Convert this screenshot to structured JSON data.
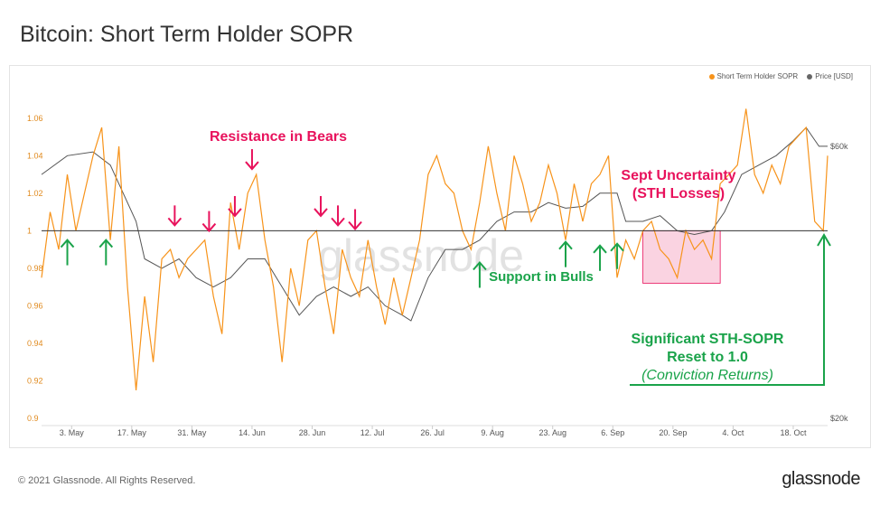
{
  "title": "Bitcoin: Short Term Holder SOPR",
  "footer": "© 2021 Glassnode. All Rights Reserved.",
  "logo": "glassnode",
  "watermark": "glassnode",
  "legend": [
    {
      "label": "Short Term Holder SOPR",
      "color": "#f7931a"
    },
    {
      "label": "Price [USD]",
      "color": "#666666"
    }
  ],
  "colors": {
    "sopr": "#f7931a",
    "price": "#555555",
    "resistance": "#e8125c",
    "support": "#1aa34a",
    "box": "#f7b6cd"
  },
  "chart_data": {
    "type": "line",
    "title": "Bitcoin: Short Term Holder SOPR",
    "x_ticks": [
      "3. May",
      "17. May",
      "31. May",
      "14. Jun",
      "28. Jun",
      "12. Jul",
      "26. Jul",
      "9. Aug",
      "23. Aug",
      "6. Sep",
      "20. Sep",
      "4. Oct",
      "18. Oct"
    ],
    "x_range": [
      "2021-04-26",
      "2021-10-26"
    ],
    "y_left_ticks": [
      "1.06",
      "1.04",
      "1.02",
      "1",
      "0.98",
      "0.96",
      "0.94",
      "0.92",
      "0.9"
    ],
    "y_left_range": [
      0.9,
      1.07
    ],
    "y_right_ticks": [
      "$60k",
      "$20k"
    ],
    "reference_line": 1,
    "series": [
      {
        "name": "Short Term Holder SOPR",
        "axis": "left",
        "points": [
          [
            "2021-04-26",
            0.975
          ],
          [
            "2021-04-28",
            1.01
          ],
          [
            "2021-04-30",
            0.99
          ],
          [
            "2021-05-02",
            1.03
          ],
          [
            "2021-05-04",
            1.0
          ],
          [
            "2021-05-06",
            1.02
          ],
          [
            "2021-05-08",
            1.04
          ],
          [
            "2021-05-10",
            1.055
          ],
          [
            "2021-05-12",
            0.995
          ],
          [
            "2021-05-14",
            1.045
          ],
          [
            "2021-05-16",
            0.97
          ],
          [
            "2021-05-18",
            0.915
          ],
          [
            "2021-05-20",
            0.965
          ],
          [
            "2021-05-22",
            0.93
          ],
          [
            "2021-05-24",
            0.985
          ],
          [
            "2021-05-26",
            0.99
          ],
          [
            "2021-05-28",
            0.975
          ],
          [
            "2021-05-30",
            0.985
          ],
          [
            "2021-06-01",
            0.99
          ],
          [
            "2021-06-03",
            0.995
          ],
          [
            "2021-06-05",
            0.965
          ],
          [
            "2021-06-07",
            0.945
          ],
          [
            "2021-06-09",
            1.015
          ],
          [
            "2021-06-11",
            0.99
          ],
          [
            "2021-06-13",
            1.02
          ],
          [
            "2021-06-15",
            1.03
          ],
          [
            "2021-06-17",
            0.995
          ],
          [
            "2021-06-19",
            0.97
          ],
          [
            "2021-06-21",
            0.93
          ],
          [
            "2021-06-23",
            0.98
          ],
          [
            "2021-06-25",
            0.96
          ],
          [
            "2021-06-27",
            0.995
          ],
          [
            "2021-06-29",
            1.0
          ],
          [
            "2021-07-01",
            0.97
          ],
          [
            "2021-07-03",
            0.945
          ],
          [
            "2021-07-05",
            0.99
          ],
          [
            "2021-07-07",
            0.975
          ],
          [
            "2021-07-09",
            0.965
          ],
          [
            "2021-07-11",
            0.995
          ],
          [
            "2021-07-13",
            0.97
          ],
          [
            "2021-07-15",
            0.95
          ],
          [
            "2021-07-17",
            0.975
          ],
          [
            "2021-07-19",
            0.955
          ],
          [
            "2021-07-21",
            0.975
          ],
          [
            "2021-07-23",
            0.995
          ],
          [
            "2021-07-25",
            1.03
          ],
          [
            "2021-07-27",
            1.04
          ],
          [
            "2021-07-29",
            1.025
          ],
          [
            "2021-07-31",
            1.02
          ],
          [
            "2021-08-02",
            1.0
          ],
          [
            "2021-08-04",
            0.99
          ],
          [
            "2021-08-06",
            1.015
          ],
          [
            "2021-08-08",
            1.045
          ],
          [
            "2021-08-10",
            1.02
          ],
          [
            "2021-08-12",
            1.0
          ],
          [
            "2021-08-14",
            1.04
          ],
          [
            "2021-08-16",
            1.025
          ],
          [
            "2021-08-18",
            1.005
          ],
          [
            "2021-08-20",
            1.015
          ],
          [
            "2021-08-22",
            1.035
          ],
          [
            "2021-08-24",
            1.02
          ],
          [
            "2021-08-26",
            0.995
          ],
          [
            "2021-08-28",
            1.025
          ],
          [
            "2021-08-30",
            1.005
          ],
          [
            "2021-09-01",
            1.025
          ],
          [
            "2021-09-03",
            1.03
          ],
          [
            "2021-09-05",
            1.04
          ],
          [
            "2021-09-07",
            0.975
          ],
          [
            "2021-09-09",
            0.995
          ],
          [
            "2021-09-11",
            0.985
          ],
          [
            "2021-09-13",
            1.0
          ],
          [
            "2021-09-15",
            1.005
          ],
          [
            "2021-09-17",
            0.99
          ],
          [
            "2021-09-19",
            0.985
          ],
          [
            "2021-09-21",
            0.975
          ],
          [
            "2021-09-23",
            1.0
          ],
          [
            "2021-09-25",
            0.99
          ],
          [
            "2021-09-27",
            0.995
          ],
          [
            "2021-09-29",
            0.985
          ],
          [
            "2021-10-01",
            1.025
          ],
          [
            "2021-10-03",
            1.03
          ],
          [
            "2021-10-05",
            1.035
          ],
          [
            "2021-10-07",
            1.065
          ],
          [
            "2021-10-09",
            1.03
          ],
          [
            "2021-10-11",
            1.02
          ],
          [
            "2021-10-13",
            1.035
          ],
          [
            "2021-10-15",
            1.025
          ],
          [
            "2021-10-17",
            1.045
          ],
          [
            "2021-10-19",
            1.05
          ],
          [
            "2021-10-21",
            1.055
          ],
          [
            "2021-10-23",
            1.005
          ],
          [
            "2021-10-25",
            1.0
          ],
          [
            "2021-10-26",
            1.04
          ]
        ]
      },
      {
        "name": "Price [USD]",
        "axis": "right",
        "points": [
          [
            "2021-04-26",
            1.03
          ],
          [
            "2021-05-02",
            1.04
          ],
          [
            "2021-05-08",
            1.042
          ],
          [
            "2021-05-12",
            1.035
          ],
          [
            "2021-05-14",
            1.025
          ],
          [
            "2021-05-18",
            1.005
          ],
          [
            "2021-05-20",
            0.985
          ],
          [
            "2021-05-24",
            0.98
          ],
          [
            "2021-05-28",
            0.985
          ],
          [
            "2021-06-01",
            0.975
          ],
          [
            "2021-06-05",
            0.97
          ],
          [
            "2021-06-09",
            0.975
          ],
          [
            "2021-06-13",
            0.985
          ],
          [
            "2021-06-17",
            0.985
          ],
          [
            "2021-06-21",
            0.97
          ],
          [
            "2021-06-25",
            0.955
          ],
          [
            "2021-06-29",
            0.965
          ],
          [
            "2021-07-03",
            0.97
          ],
          [
            "2021-07-07",
            0.965
          ],
          [
            "2021-07-11",
            0.97
          ],
          [
            "2021-07-15",
            0.96
          ],
          [
            "2021-07-19",
            0.955
          ],
          [
            "2021-07-21",
            0.952
          ],
          [
            "2021-07-25",
            0.975
          ],
          [
            "2021-07-29",
            0.99
          ],
          [
            "2021-08-02",
            0.99
          ],
          [
            "2021-08-06",
            0.995
          ],
          [
            "2021-08-10",
            1.005
          ],
          [
            "2021-08-14",
            1.01
          ],
          [
            "2021-08-18",
            1.01
          ],
          [
            "2021-08-22",
            1.015
          ],
          [
            "2021-08-26",
            1.012
          ],
          [
            "2021-08-30",
            1.013
          ],
          [
            "2021-09-03",
            1.02
          ],
          [
            "2021-09-07",
            1.02
          ],
          [
            "2021-09-09",
            1.005
          ],
          [
            "2021-09-13",
            1.005
          ],
          [
            "2021-09-17",
            1.008
          ],
          [
            "2021-09-21",
            1.0
          ],
          [
            "2021-09-25",
            0.998
          ],
          [
            "2021-09-29",
            1.0
          ],
          [
            "2021-10-02",
            1.01
          ],
          [
            "2021-10-06",
            1.03
          ],
          [
            "2021-10-10",
            1.035
          ],
          [
            "2021-10-14",
            1.04
          ],
          [
            "2021-10-18",
            1.048
          ],
          [
            "2021-10-21",
            1.055
          ],
          [
            "2021-10-24",
            1.045
          ],
          [
            "2021-10-26",
            1.045
          ]
        ]
      }
    ],
    "annotations": {
      "resistance_label": "Resistance in Bears",
      "support_label": "Support in Bulls",
      "sept_label_line1": "Sept Uncertainty",
      "sept_label_line2": "(STH Losses)",
      "reset_line1": "Significant STH-SOPR",
      "reset_line2": "Reset to 1.0",
      "reset_line3": "(Conviction Returns)",
      "resistance_arrows": [
        {
          "date": "2021-05-27",
          "y": 1.0
        },
        {
          "date": "2021-06-04",
          "y": 0.997
        },
        {
          "date": "2021-06-10",
          "y": 1.005
        },
        {
          "date": "2021-06-14",
          "y": 1.03
        },
        {
          "date": "2021-06-30",
          "y": 1.005
        },
        {
          "date": "2021-07-04",
          "y": 1.0
        },
        {
          "date": "2021-07-08",
          "y": 0.998
        }
      ],
      "support_arrows": [
        {
          "date": "2021-05-02",
          "y": 0.997
        },
        {
          "date": "2021-05-11",
          "y": 0.997
        },
        {
          "date": "2021-08-06",
          "y": 0.985
        },
        {
          "date": "2021-08-26",
          "y": 0.996
        },
        {
          "date": "2021-09-03",
          "y": 0.994
        },
        {
          "date": "2021-09-07",
          "y": 0.995
        },
        {
          "date": "2021-10-26",
          "y": 0.998
        }
      ],
      "uncertainty_box": {
        "start": "2021-09-13",
        "end": "2021-10-01",
        "y_top": 1.0,
        "y_bottom": 0.972
      }
    }
  }
}
